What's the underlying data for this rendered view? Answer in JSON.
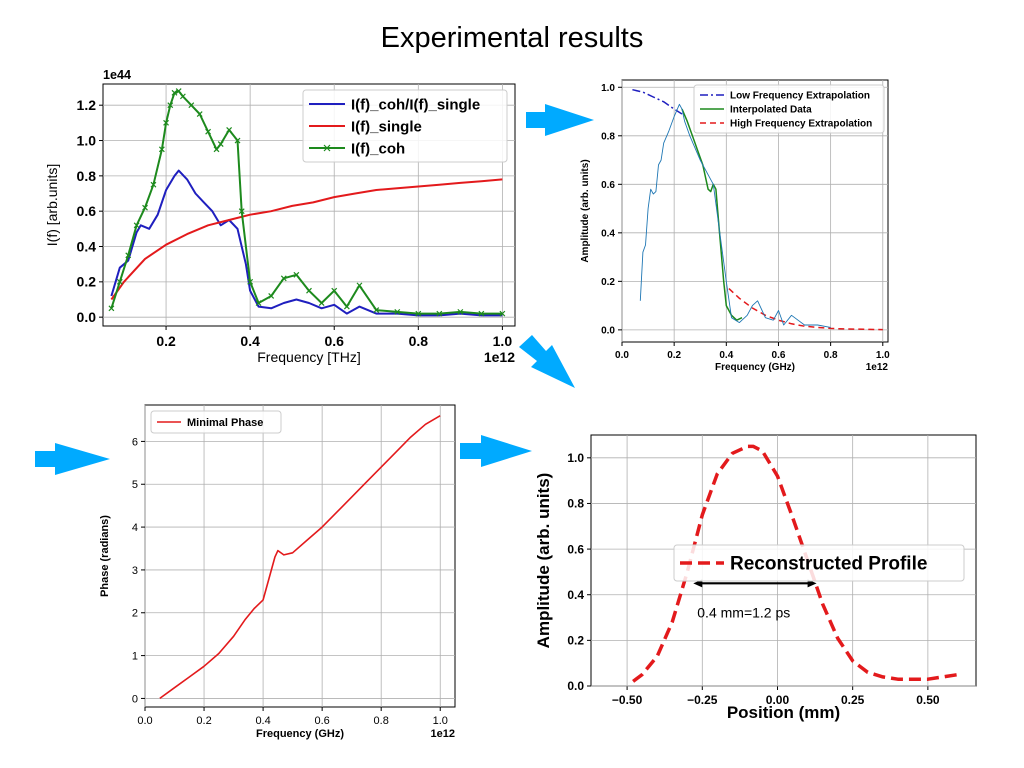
{
  "page": {
    "title": "Experimental results"
  },
  "colors": {
    "arrow": "#00AAFF",
    "blue": "#1f1fbf",
    "red": "#e31a1c",
    "green": "#1d8a1d",
    "grid": "#b0b0b0"
  },
  "chart_data": [
    {
      "id": "spectrum",
      "type": "line",
      "title": "",
      "xlabel": "Frequency [THz]",
      "ylabel": "I(f) [arb.units]",
      "x_offset_label": "1e12",
      "y_offset_label": "1e44",
      "xlim": [
        0.05,
        1.03
      ],
      "ylim": [
        -0.05,
        1.32
      ],
      "xticks": [
        0.2,
        0.4,
        0.6,
        0.8,
        1.0
      ],
      "xtick_labels": [
        "0.2",
        "0.4",
        "0.6",
        "0.8",
        "1.0"
      ],
      "yticks": [
        0.0,
        0.2,
        0.4,
        0.6,
        0.8,
        1.0,
        1.2
      ],
      "ytick_labels": [
        "0.0",
        "0.2",
        "0.4",
        "0.6",
        "0.8",
        "1.0",
        "1.2"
      ],
      "grid": true,
      "legend": "top-right",
      "series": [
        {
          "name": "I(f)_coh/I(f)_single",
          "color": "#1f1fbf",
          "dash": "",
          "markers": false,
          "x": [
            0.07,
            0.09,
            0.11,
            0.13,
            0.14,
            0.16,
            0.18,
            0.2,
            0.22,
            0.23,
            0.25,
            0.27,
            0.29,
            0.31,
            0.33,
            0.35,
            0.37,
            0.39,
            0.4,
            0.42,
            0.45,
            0.48,
            0.51,
            0.54,
            0.57,
            0.6,
            0.63,
            0.66,
            0.7,
            0.75,
            0.8,
            0.85,
            0.9,
            0.95,
            1.0
          ],
          "y": [
            0.12,
            0.28,
            0.32,
            0.48,
            0.52,
            0.5,
            0.58,
            0.72,
            0.8,
            0.83,
            0.78,
            0.7,
            0.65,
            0.6,
            0.52,
            0.55,
            0.5,
            0.3,
            0.15,
            0.06,
            0.05,
            0.08,
            0.1,
            0.08,
            0.05,
            0.07,
            0.02,
            0.06,
            0.02,
            0.02,
            0.01,
            0.01,
            0.02,
            0.01,
            0.01
          ]
        },
        {
          "name": "I(f)_single",
          "color": "#e31a1c",
          "dash": "",
          "markers": false,
          "x": [
            0.07,
            0.1,
            0.15,
            0.2,
            0.25,
            0.3,
            0.35,
            0.4,
            0.45,
            0.5,
            0.55,
            0.6,
            0.65,
            0.7,
            0.75,
            0.8,
            0.85,
            0.9,
            0.95,
            1.0
          ],
          "y": [
            0.1,
            0.2,
            0.33,
            0.41,
            0.47,
            0.52,
            0.55,
            0.58,
            0.6,
            0.63,
            0.65,
            0.68,
            0.7,
            0.72,
            0.73,
            0.74,
            0.75,
            0.76,
            0.77,
            0.78
          ]
        },
        {
          "name": "I(f)_coh",
          "color": "#1d8a1d",
          "dash": "",
          "markers": true,
          "x": [
            0.07,
            0.09,
            0.11,
            0.13,
            0.15,
            0.17,
            0.19,
            0.2,
            0.21,
            0.22,
            0.23,
            0.24,
            0.26,
            0.28,
            0.3,
            0.32,
            0.33,
            0.35,
            0.37,
            0.38,
            0.4,
            0.42,
            0.45,
            0.48,
            0.51,
            0.54,
            0.57,
            0.6,
            0.63,
            0.66,
            0.7,
            0.75,
            0.8,
            0.85,
            0.9,
            0.95,
            1.0
          ],
          "y": [
            0.05,
            0.2,
            0.35,
            0.52,
            0.62,
            0.75,
            0.95,
            1.1,
            1.2,
            1.27,
            1.28,
            1.25,
            1.2,
            1.15,
            1.05,
            0.95,
            0.98,
            1.06,
            1.0,
            0.6,
            0.2,
            0.08,
            0.12,
            0.22,
            0.24,
            0.15,
            0.08,
            0.15,
            0.06,
            0.18,
            0.04,
            0.03,
            0.02,
            0.02,
            0.03,
            0.02,
            0.02
          ]
        }
      ]
    },
    {
      "id": "extrapolation",
      "type": "line",
      "xlabel": "Frequency (GHz)",
      "ylabel": "Amplitude (arb. units)",
      "x_offset_label": "1e12",
      "xlim": [
        0.0,
        1.02
      ],
      "ylim": [
        -0.05,
        1.03
      ],
      "xticks": [
        0.0,
        0.2,
        0.4,
        0.6,
        0.8,
        1.0
      ],
      "xtick_labels": [
        "0.0",
        "0.2",
        "0.4",
        "0.6",
        "0.8",
        "1.0"
      ],
      "yticks": [
        0.0,
        0.2,
        0.4,
        0.6,
        0.8,
        1.0
      ],
      "ytick_labels": [
        "0.0",
        "0.2",
        "0.4",
        "0.6",
        "0.8",
        "1.0"
      ],
      "grid": true,
      "legend": "top-right",
      "series": [
        {
          "name": "Low Frequency Extrapolation",
          "color": "#1f1fbf",
          "dash": "8 3 2 3",
          "markers": false,
          "x": [
            0.04,
            0.08,
            0.12,
            0.16,
            0.2,
            0.23
          ],
          "y": [
            0.99,
            0.98,
            0.96,
            0.94,
            0.91,
            0.89
          ]
        },
        {
          "name": "Interpolated Data",
          "color": "#1d8a1d",
          "dash": "",
          "markers": false,
          "x": [
            0.23,
            0.25,
            0.27,
            0.29,
            0.31,
            0.33,
            0.34,
            0.35,
            0.36,
            0.37,
            0.39,
            0.4,
            0.42,
            0.44,
            0.46
          ],
          "y": [
            0.91,
            0.86,
            0.8,
            0.74,
            0.68,
            0.58,
            0.57,
            0.6,
            0.58,
            0.45,
            0.2,
            0.1,
            0.06,
            0.04,
            0.05
          ]
        },
        {
          "name": "High Frequency Extrapolation",
          "color": "#e31a1c",
          "dash": "6 4",
          "markers": false,
          "x": [
            0.41,
            0.45,
            0.5,
            0.55,
            0.6,
            0.65,
            0.7,
            0.75,
            0.8,
            0.85,
            0.9,
            0.95,
            1.0
          ],
          "y": [
            0.17,
            0.13,
            0.09,
            0.06,
            0.04,
            0.025,
            0.015,
            0.01,
            0.006,
            0.004,
            0.003,
            0.002,
            0.001
          ]
        },
        {
          "name": "",
          "color": "#1f77b4",
          "dash": "",
          "markers": false,
          "x": [
            0.07,
            0.08,
            0.09,
            0.1,
            0.11,
            0.12,
            0.13,
            0.14,
            0.15,
            0.16,
            0.18,
            0.2,
            0.22,
            0.23,
            0.24,
            0.26,
            0.3,
            0.35,
            0.4,
            0.42,
            0.45,
            0.48,
            0.5,
            0.52,
            0.55,
            0.58,
            0.6,
            0.62,
            0.65,
            0.7,
            0.75,
            0.8
          ],
          "y": [
            0.12,
            0.32,
            0.35,
            0.5,
            0.58,
            0.56,
            0.57,
            0.68,
            0.7,
            0.77,
            0.82,
            0.88,
            0.93,
            0.91,
            0.86,
            0.8,
            0.7,
            0.6,
            0.2,
            0.05,
            0.03,
            0.06,
            0.1,
            0.12,
            0.05,
            0.04,
            0.08,
            0.02,
            0.06,
            0.02,
            0.02,
            0.01
          ]
        }
      ]
    },
    {
      "id": "phase",
      "type": "line",
      "xlabel": "Frequency (GHz)",
      "ylabel": "Phase (radians)",
      "x_offset_label": "1e12",
      "xlim": [
        0.0,
        1.05
      ],
      "ylim": [
        -0.2,
        6.85
      ],
      "xticks": [
        0.0,
        0.2,
        0.4,
        0.6,
        0.8,
        1.0
      ],
      "xtick_labels": [
        "0.0",
        "0.2",
        "0.4",
        "0.6",
        "0.8",
        "1.0"
      ],
      "yticks": [
        0,
        1,
        2,
        3,
        4,
        5,
        6
      ],
      "ytick_labels": [
        "0",
        "1",
        "2",
        "3",
        "4",
        "5",
        "6"
      ],
      "grid": true,
      "legend": "top-left",
      "series": [
        {
          "name": "Minimal Phase",
          "color": "#e31a1c",
          "dash": "",
          "markers": false,
          "x": [
            0.05,
            0.1,
            0.15,
            0.2,
            0.25,
            0.3,
            0.34,
            0.37,
            0.4,
            0.42,
            0.44,
            0.45,
            0.47,
            0.5,
            0.55,
            0.6,
            0.65,
            0.7,
            0.75,
            0.8,
            0.85,
            0.9,
            0.95,
            1.0
          ],
          "y": [
            0.0,
            0.25,
            0.5,
            0.75,
            1.05,
            1.45,
            1.85,
            2.1,
            2.3,
            2.8,
            3.3,
            3.45,
            3.35,
            3.4,
            3.7,
            4.0,
            4.35,
            4.7,
            5.05,
            5.4,
            5.75,
            6.1,
            6.4,
            6.6
          ]
        }
      ]
    },
    {
      "id": "profile",
      "type": "line",
      "xlabel": "Position (mm)",
      "ylabel": "Amplitude (arb. units)",
      "xlim": [
        -0.62,
        0.66
      ],
      "ylim": [
        0.0,
        1.1
      ],
      "xticks": [
        -0.5,
        -0.25,
        0.0,
        0.25,
        0.5
      ],
      "xtick_labels": [
        "−0.50",
        "−0.25",
        "0.00",
        "0.25",
        "0.50"
      ],
      "yticks": [
        0.0,
        0.2,
        0.4,
        0.6,
        0.8,
        1.0
      ],
      "ytick_labels": [
        "0.0",
        "0.2",
        "0.4",
        "0.6",
        "0.8",
        "1.0"
      ],
      "grid": true,
      "legend": "center-right",
      "annotation": {
        "text": "0.4 mm=1.2 ps",
        "x_start": -0.28,
        "x_end": 0.13,
        "y": 0.45
      },
      "series": [
        {
          "name": "Reconstructed Profile",
          "color": "#e31a1c",
          "dash": "12 6",
          "markers": false,
          "x": [
            -0.48,
            -0.45,
            -0.4,
            -0.35,
            -0.3,
            -0.25,
            -0.2,
            -0.15,
            -0.1,
            -0.08,
            -0.05,
            0.0,
            0.05,
            0.1,
            0.15,
            0.2,
            0.25,
            0.3,
            0.35,
            0.4,
            0.45,
            0.5,
            0.55,
            0.6
          ],
          "y": [
            0.02,
            0.05,
            0.13,
            0.28,
            0.5,
            0.75,
            0.93,
            1.02,
            1.05,
            1.05,
            1.03,
            0.92,
            0.74,
            0.55,
            0.36,
            0.21,
            0.11,
            0.06,
            0.04,
            0.03,
            0.03,
            0.03,
            0.04,
            0.05
          ]
        }
      ]
    }
  ]
}
